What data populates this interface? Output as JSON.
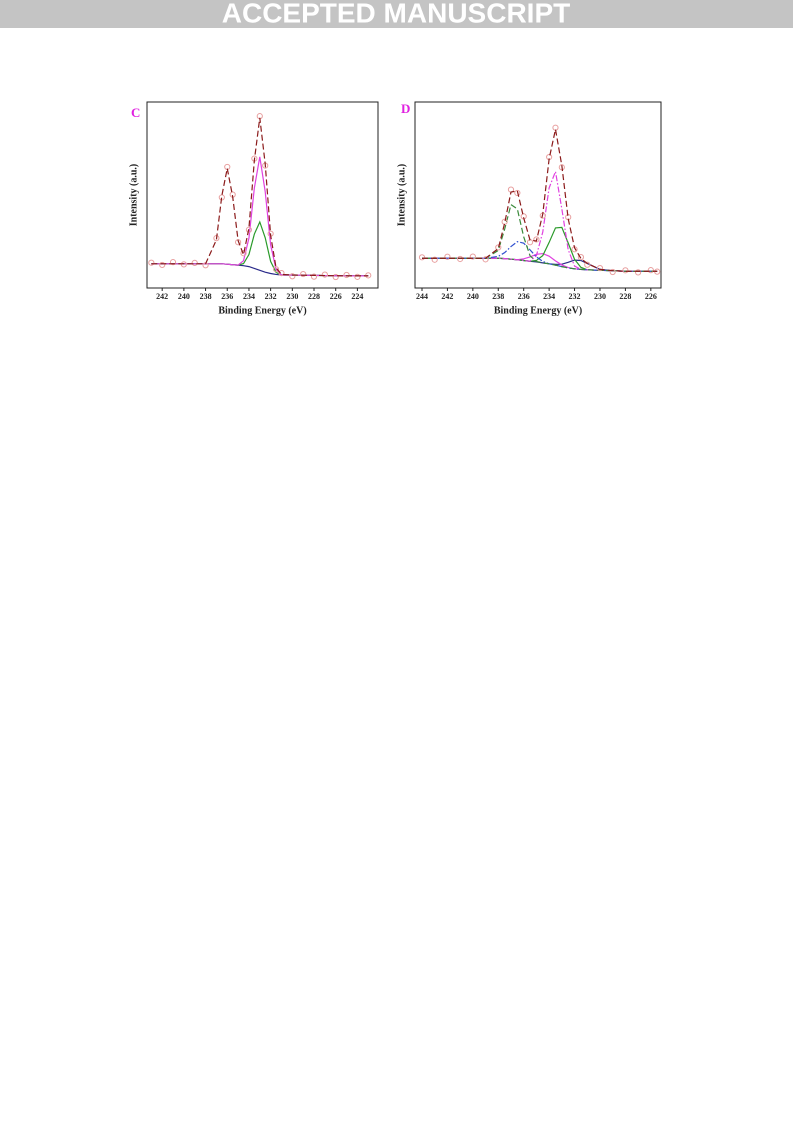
{
  "header": "ACCEPTED MANUSCRIPT",
  "chart_data": [
    {
      "type": "line",
      "label": "C",
      "label_color": "#e020e0",
      "xlabel": "Binding Energy (eV)",
      "ylabel": "Intensity (a.u.)",
      "x": [
        243,
        242,
        241,
        240,
        239,
        238,
        237,
        236.5,
        236,
        235.5,
        235,
        234.5,
        234,
        233.5,
        233,
        232.5,
        232,
        231.5,
        231,
        230,
        229,
        228,
        227,
        226,
        225,
        224,
        223
      ],
      "xlim": [
        243.4,
        222.1
      ],
      "xticks": [
        242,
        240,
        238,
        236,
        234,
        232,
        230,
        228,
        226,
        224
      ],
      "ylim": [
        0,
        100
      ],
      "series": [
        {
          "color": "#2a2a8a",
          "style": "solid",
          "values": [
            13,
            13,
            13,
            13,
            13,
            13,
            13,
            13,
            12.8,
            12.5,
            12.3,
            12,
            11.5,
            10.5,
            9.5,
            8.5,
            7.8,
            7.3,
            7,
            7,
            6.9,
            6.8,
            6.7,
            6.6,
            6.5,
            6.5,
            6.5
          ]
        },
        {
          "color": "#2a9a2a",
          "style": "solid",
          "values": [
            13,
            13,
            13,
            13,
            13,
            13,
            13,
            13,
            12.8,
            12.5,
            12.3,
            13.1,
            18,
            29,
            35.5,
            27,
            14.3,
            8.4,
            7,
            7,
            6.9,
            6.8,
            6.7,
            6.6,
            6.5,
            6.5,
            6.5
          ]
        },
        {
          "color": "#e040e0",
          "style": "solid",
          "values": [
            13,
            13,
            13,
            13,
            13,
            13,
            13,
            13,
            12.8,
            12.5,
            12.3,
            14.7,
            26.8,
            53.8,
            70.5,
            51.8,
            23.1,
            10,
            7,
            7,
            6.9,
            6.8,
            6.7,
            6.6,
            6.5,
            6.5,
            6.5
          ]
        },
        {
          "color": "#e8a0a0",
          "style": "circle",
          "values": [
            13.6,
            12.4,
            13.9,
            12.7,
            13.5,
            12.2,
            26.8,
            48.7,
            65.1,
            50.2,
            24.6,
            18.7,
            31.3,
            69.6,
            92.4,
            65.8,
            29.2,
            10.1,
            8,
            6.3,
            7.5,
            6.1,
            7.2,
            5.9,
            7,
            6,
            6.8
          ]
        },
        {
          "color": "#8b1a1a",
          "style": "dashed",
          "values": [
            13,
            13,
            13,
            13,
            13,
            13,
            25.9,
            49.6,
            64.3,
            49.1,
            25.5,
            17.9,
            32.2,
            68.7,
            91.5,
            66.7,
            28.3,
            10.9,
            7.3,
            7,
            6.9,
            6.8,
            6.7,
            6.6,
            6.5,
            6.5,
            6.5
          ]
        }
      ]
    },
    {
      "type": "line",
      "label": "D",
      "label_color": "#e020e0",
      "xlabel": "Binding Energy (eV)",
      "ylabel": "Intensity (a.u.)",
      "x": [
        244,
        243,
        242,
        241,
        240,
        239,
        238,
        237.5,
        237,
        236.5,
        236,
        235.5,
        235,
        234.5,
        234,
        233.5,
        233,
        232.5,
        232,
        231.5,
        231,
        230,
        229,
        228,
        227,
        226,
        225.5
      ],
      "xlim": [
        244.55,
        225.2
      ],
      "xticks": [
        244,
        242,
        240,
        238,
        236,
        234,
        232,
        230,
        228,
        226
      ],
      "ylim": [
        0,
        100
      ],
      "series": [
        {
          "color": "#2a2a8a",
          "style": "solid",
          "values": [
            16,
            16,
            16,
            16,
            16,
            16,
            16,
            15.8,
            15.5,
            15.2,
            14.8,
            14.4,
            14,
            13.5,
            13,
            12.7,
            12.8,
            13.8,
            15,
            14.8,
            13.2,
            10,
            9.3,
            9,
            9,
            9,
            9
          ]
        },
        {
          "color": "#e040e0",
          "style": "solid",
          "values": [
            16,
            16,
            16,
            16,
            16,
            16,
            16,
            15.8,
            15.5,
            15.2,
            15.7,
            16.7,
            18.1,
            18.5,
            17.1,
            14.6,
            12.4,
            11,
            10.3,
            10,
            9.8,
            9.5,
            9.3,
            9,
            9,
            9,
            9
          ]
        },
        {
          "color": "#2a9a2a",
          "style": "solid",
          "values": [
            16,
            16,
            16,
            16,
            16,
            16,
            16,
            15.8,
            15.5,
            15.2,
            14.8,
            14.4,
            14.8,
            17.4,
            24.5,
            32.3,
            32.6,
            24.2,
            15.4,
            11.1,
            9.8,
            9.5,
            9.3,
            9,
            9,
            9,
            9
          ]
        },
        {
          "color": "#e040e0",
          "style": "dashdot",
          "values": [
            16,
            16,
            16,
            16,
            16,
            16,
            16,
            15.8,
            15.5,
            15.2,
            14.8,
            14.4,
            17.4,
            30.1,
            53.8,
            62.6,
            42.5,
            20.6,
            11.8,
            10,
            9.8,
            9.5,
            9.3,
            9,
            9,
            9,
            9
          ]
        },
        {
          "color": "#3050d0",
          "style": "dashdot",
          "values": [
            16,
            16,
            16,
            16,
            16,
            16,
            17,
            19,
            22.3,
            24.9,
            24.1,
            20.5,
            16.7,
            14.3,
            13,
            12.3,
            11.5,
            10.8,
            10.3,
            10,
            9.8,
            9.5,
            9.3,
            9,
            9,
            9,
            9
          ]
        },
        {
          "color": "#3a8a3a",
          "style": "dashed",
          "values": [
            16,
            16,
            16,
            16,
            16,
            16,
            20.2,
            31.6,
            44.8,
            42.5,
            27.5,
            17.3,
            14.3,
            13.5,
            13,
            12.3,
            11.5,
            10.8,
            10.3,
            10,
            9.8,
            9.5,
            9.3,
            9,
            9,
            9,
            9
          ]
        },
        {
          "color": "#e8a0a0",
          "style": "circle",
          "values": [
            16.5,
            15.2,
            16.8,
            15.6,
            16.9,
            15.4,
            21.8,
            35.6,
            52.9,
            51.1,
            38.5,
            24.6,
            26.1,
            38.9,
            70.4,
            86.2,
            64.9,
            38.1,
            20.8,
            16.6,
            12.5,
            10.7,
            8.6,
            9.5,
            8.4,
            9.6,
            8.8
          ]
        },
        {
          "color": "#8b1a1a",
          "style": "dashed",
          "values": [
            16,
            16,
            16,
            16,
            16,
            16,
            21.2,
            34.8,
            51.6,
            52.2,
            37.7,
            25.7,
            25.3,
            39.8,
            69.4,
            85.3,
            65.8,
            37.2,
            21.6,
            15.9,
            13.2,
            10,
            9.3,
            9,
            9,
            9,
            9
          ]
        }
      ]
    }
  ]
}
